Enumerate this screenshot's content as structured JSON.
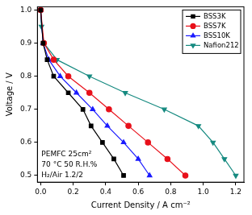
{
  "chart_data": {
    "type": "line",
    "x_label": "Current Density / A cm⁻²",
    "y_label": "Voltage / V",
    "annotations": [
      "PEMFC 25cm²",
      "70 °C 50 R.H.%",
      "H₂/Air 1.2/2"
    ],
    "xlim": [
      -0.02,
      1.25
    ],
    "ylim": [
      0.48,
      1.01
    ],
    "xticks": [
      {
        "value": 0,
        "label": "0.0"
      },
      0.2,
      0.4,
      0.6,
      0.8,
      {
        "value": 1,
        "label": "1.0"
      },
      1.2
    ],
    "yticks": [
      0.5,
      0.6,
      0.7,
      0.8,
      0.9,
      {
        "value": 1,
        "label": "1.0"
      }
    ],
    "grid": false,
    "legend": "upper right",
    "series": [
      {
        "name": "BSS3K",
        "color": "#000000",
        "marker": "square",
        "line_style": "solid",
        "x": [
          0,
          0.015,
          0.04,
          0.08,
          0.17,
          0.26,
          0.31,
          0.38,
          0.45,
          0.51
        ],
        "values": [
          1.0,
          0.9,
          0.85,
          0.8,
          0.75,
          0.7,
          0.65,
          0.6,
          0.55,
          0.5
        ]
      },
      {
        "name": "BSS7K",
        "color": "#e8101a",
        "marker": "circle",
        "line_style": "solid",
        "x": [
          0,
          0.02,
          0.08,
          0.17,
          0.3,
          0.42,
          0.54,
          0.66,
          0.78,
          0.89
        ],
        "values": [
          1.0,
          0.9,
          0.85,
          0.8,
          0.75,
          0.7,
          0.65,
          0.6,
          0.55,
          0.5
        ]
      },
      {
        "name": "BSS10K",
        "color": "#1a1aff",
        "marker": "triangle",
        "line_style": "solid",
        "x": [
          0,
          0.015,
          0.05,
          0.12,
          0.22,
          0.32,
          0.41,
          0.51,
          0.6,
          0.67
        ],
        "values": [
          1.0,
          0.9,
          0.85,
          0.8,
          0.75,
          0.7,
          0.65,
          0.6,
          0.55,
          0.5
        ]
      },
      {
        "name": "Nafion212",
        "color": "#168a80",
        "marker": "triangle_down",
        "line_style": "solid",
        "x": [
          0,
          0.005,
          0.02,
          0.1,
          0.3,
          0.52,
          0.76,
          0.97,
          1.06,
          1.13,
          1.2
        ],
        "values": [
          1.0,
          0.95,
          0.9,
          0.85,
          0.8,
          0.75,
          0.7,
          0.65,
          0.6,
          0.55,
          0.5
        ]
      }
    ]
  }
}
